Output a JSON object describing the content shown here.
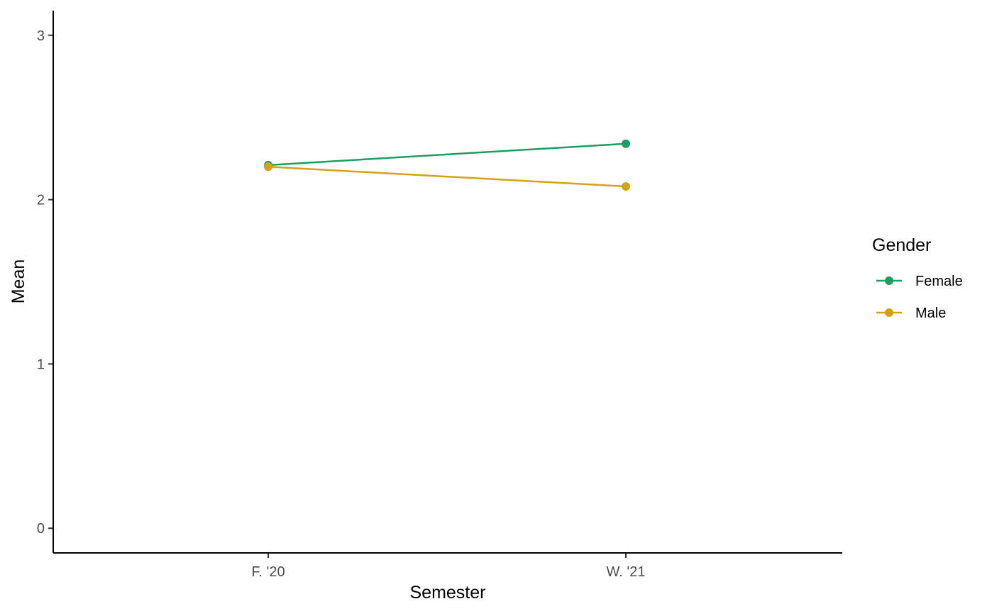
{
  "chart_data": {
    "type": "line",
    "x": [
      "F. '20",
      "W. '21"
    ],
    "xlabel": "Semester",
    "ylabel": "Mean",
    "ylim": [
      -0.15,
      3.15
    ],
    "yticks": [
      0,
      1,
      2,
      3
    ],
    "grid": false,
    "legend": {
      "title": "Gender",
      "placement": "right"
    },
    "series": [
      {
        "name": "Female",
        "color": "#1b9e5f",
        "values": [
          2.21,
          2.34
        ]
      },
      {
        "name": "Male",
        "color": "#d4a213",
        "values": [
          2.2,
          2.08
        ]
      }
    ]
  }
}
